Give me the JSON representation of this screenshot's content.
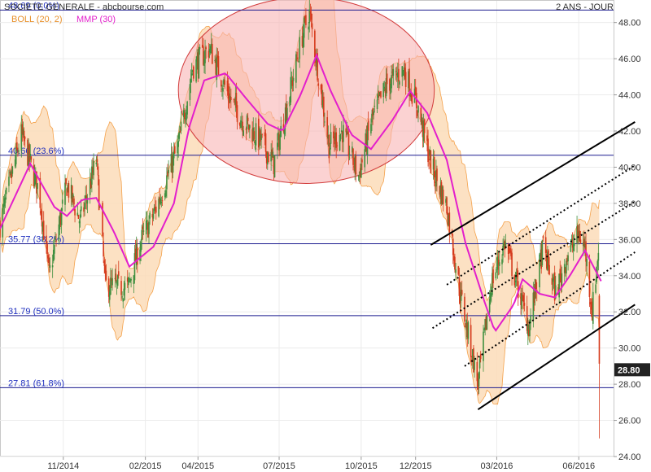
{
  "header": {
    "title": "SOCIETE GENERALE - abcbourse.com",
    "period": "2 ANS - JOUR",
    "legend_boll": "BOLL (20, 2)",
    "legend_mmp": "MMP (30)"
  },
  "chart_data": {
    "type": "candlestick",
    "ylim": [
      24,
      49.2
    ],
    "yticks": [
      "24.00",
      "26.00",
      "28.00",
      "30.00",
      "32.00",
      "34.00",
      "36.00",
      "38.00",
      "40.00",
      "42.00",
      "44.00",
      "46.00",
      "48.00"
    ],
    "x_start": "2014-08-22",
    "x_end": "2016-07-10",
    "xticks": [
      {
        "date": "2014-11-01",
        "label": "11/2014"
      },
      {
        "date": "2015-02-01",
        "label": "02/2015"
      },
      {
        "date": "2015-04-01",
        "label": "04/2015"
      },
      {
        "date": "2015-07-01",
        "label": "07/2015"
      },
      {
        "date": "2015-10-01",
        "label": "10/2015"
      },
      {
        "date": "2015-12-01",
        "label": "12/2015"
      },
      {
        "date": "2016-03-01",
        "label": "03/2016"
      },
      {
        "date": "2016-06-01",
        "label": "06/2016"
      }
    ],
    "fib_levels": [
      {
        "value": 48.69,
        "label": "48.69 (0.0%)"
      },
      {
        "value": 40.66,
        "label": "40.66 (23.6%)"
      },
      {
        "value": 35.77,
        "label": "35.77 (38.2%)"
      },
      {
        "value": 31.79,
        "label": "31.79 (50.0%)"
      },
      {
        "value": 27.81,
        "label": "27.81 (61.8%)"
      }
    ],
    "last_price": "28.80",
    "close_anchors": [
      [
        "2014-08-22",
        36.8
      ],
      [
        "2014-09-15",
        41.8
      ],
      [
        "2014-10-05",
        38.6
      ],
      [
        "2014-10-16",
        34.0
      ],
      [
        "2014-11-05",
        39.0
      ],
      [
        "2014-11-20",
        37.0
      ],
      [
        "2014-12-08",
        40.4
      ],
      [
        "2014-12-18",
        33.5
      ],
      [
        "2015-01-12",
        33.3
      ],
      [
        "2015-01-26",
        35.8
      ],
      [
        "2015-02-12",
        37.6
      ],
      [
        "2015-03-10",
        41.2
      ],
      [
        "2015-03-26",
        45.5
      ],
      [
        "2015-04-14",
        46.6
      ],
      [
        "2015-05-05",
        44.0
      ],
      [
        "2015-05-21",
        42.6
      ],
      [
        "2015-06-10",
        41.5
      ],
      [
        "2015-06-25",
        40.2
      ],
      [
        "2015-07-10",
        43.5
      ],
      [
        "2015-07-28",
        47.5
      ],
      [
        "2015-08-04",
        48.5
      ],
      [
        "2015-08-19",
        43.5
      ],
      [
        "2015-08-26",
        41.2
      ],
      [
        "2015-09-10",
        42.0
      ],
      [
        "2015-09-28",
        39.5
      ],
      [
        "2015-10-12",
        42.5
      ],
      [
        "2015-10-30",
        44.6
      ],
      [
        "2015-11-18",
        45.4
      ],
      [
        "2015-12-04",
        43.2
      ],
      [
        "2015-12-18",
        40.2
      ],
      [
        "2016-01-05",
        37.8
      ],
      [
        "2016-01-20",
        33.0
      ],
      [
        "2016-02-09",
        28.0
      ],
      [
        "2016-02-24",
        33.6
      ],
      [
        "2016-03-10",
        35.8
      ],
      [
        "2016-03-22",
        33.8
      ],
      [
        "2016-04-06",
        31.2
      ],
      [
        "2016-04-22",
        35.6
      ],
      [
        "2016-05-06",
        33.0
      ],
      [
        "2016-05-18",
        35.0
      ],
      [
        "2016-06-01",
        36.3
      ],
      [
        "2016-06-08",
        35.5
      ],
      [
        "2016-06-16",
        32.0
      ],
      [
        "2016-06-23",
        35.5
      ],
      [
        "2016-06-24",
        28.8
      ]
    ],
    "mmp": [
      [
        "2014-08-22",
        36.6
      ],
      [
        "2014-09-25",
        40.2
      ],
      [
        "2014-10-22",
        37.8
      ],
      [
        "2014-11-05",
        37.3
      ],
      [
        "2014-11-22",
        38.2
      ],
      [
        "2014-12-08",
        38.3
      ],
      [
        "2014-12-28",
        36.4
      ],
      [
        "2015-01-14",
        34.5
      ],
      [
        "2015-02-10",
        35.6
      ],
      [
        "2015-03-05",
        38.0
      ],
      [
        "2015-03-22",
        42.2
      ],
      [
        "2015-04-08",
        44.8
      ],
      [
        "2015-05-02",
        45.2
      ],
      [
        "2015-05-25",
        43.8
      ],
      [
        "2015-06-18",
        42.4
      ],
      [
        "2015-07-05",
        42.0
      ],
      [
        "2015-07-25",
        44.0
      ],
      [
        "2015-08-12",
        46.2
      ],
      [
        "2015-08-28",
        44.2
      ],
      [
        "2015-09-20",
        41.8
      ],
      [
        "2015-10-12",
        41.0
      ],
      [
        "2015-11-05",
        42.6
      ],
      [
        "2015-11-25",
        44.2
      ],
      [
        "2015-12-14",
        43.0
      ],
      [
        "2016-01-05",
        40.4
      ],
      [
        "2016-01-26",
        35.8
      ],
      [
        "2016-02-16",
        32.6
      ],
      [
        "2016-02-28",
        30.9
      ],
      [
        "2016-03-20",
        32.4
      ],
      [
        "2016-03-30",
        33.8
      ],
      [
        "2016-04-18",
        33.0
      ],
      [
        "2016-05-05",
        32.8
      ],
      [
        "2016-05-22",
        34.0
      ],
      [
        "2016-06-08",
        35.4
      ],
      [
        "2016-06-26",
        33.7
      ]
    ],
    "ellipse": {
      "date_from": "2015-03-10",
      "date_to": "2015-12-22",
      "price_from": 39.1,
      "price_to": 49.4
    },
    "channel_solid": [
      {
        "from": [
          "2015-12-18",
          35.7
        ],
        "to": [
          "2016-08-03",
          42.5
        ]
      },
      {
        "from": [
          "2016-02-09",
          26.6
        ],
        "to": [
          "2016-08-03",
          32.4
        ]
      }
    ],
    "channel_dotted": [
      {
        "from": [
          "2016-01-05",
          33.5
        ],
        "to": [
          "2016-08-03",
          40.1
        ]
      },
      {
        "from": [
          "2015-12-20",
          31.1
        ],
        "to": [
          "2016-08-03",
          38.1
        ]
      },
      {
        "from": [
          "2016-01-25",
          29.0
        ],
        "to": [
          "2016-08-03",
          35.3
        ]
      }
    ],
    "colors": {
      "up": "#3f8f3f",
      "down": "#d53a1c",
      "bollinger_fill": "#fcdcb8",
      "bollinger_line": "#f4a24c",
      "mmp": "#e31fcb",
      "fib_line": "#1b1b8f",
      "fib_label": "#1f2fbf",
      "ellipse_fill": "#f8b4b4",
      "ellipse_stroke": "#d23c3c",
      "title": "#333333",
      "last_price_bg": "#222222"
    }
  }
}
